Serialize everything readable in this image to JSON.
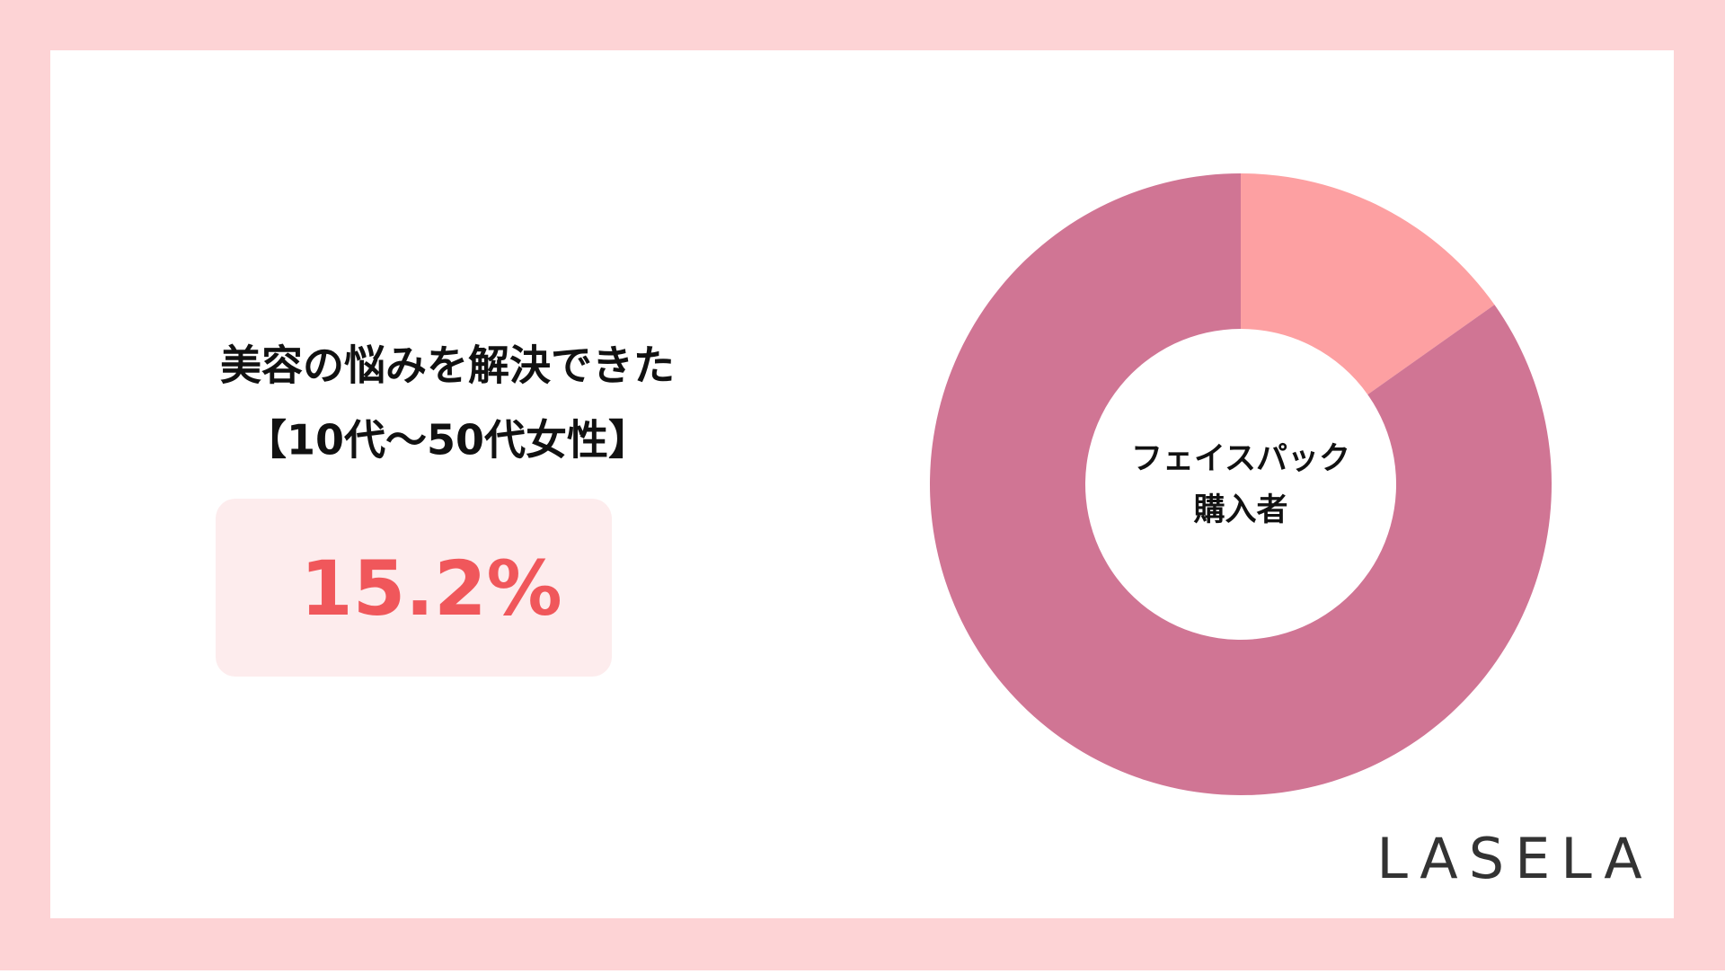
{
  "chart_data": {
    "type": "donut",
    "title": "美容の悩みを解決できた",
    "subtitle": "【10代〜50代女性】",
    "values": [
      15.2,
      84.8
    ],
    "value_labels": [
      "15.2%",
      null
    ],
    "colors": [
      "#fda0a2",
      "#d07594"
    ],
    "center_label": [
      "フェイスパック",
      "購入者"
    ],
    "brand": "LASELA"
  }
}
